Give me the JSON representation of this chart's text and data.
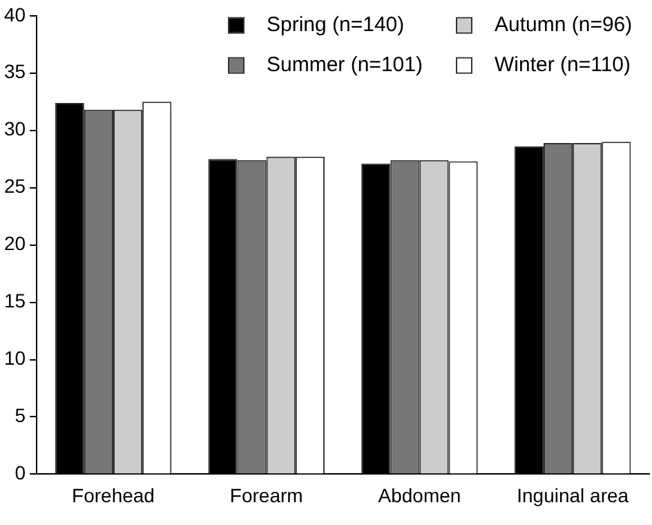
{
  "chart_data": {
    "type": "bar",
    "categories": [
      "Forehead",
      "Forearm",
      "Abdomen",
      "Inguinal area"
    ],
    "series": [
      {
        "name": "Spring (n=140)",
        "color": "#000000",
        "values": [
          32.4,
          27.5,
          27.1,
          28.6
        ]
      },
      {
        "name": "Summer (n=101)",
        "color": "#777777",
        "values": [
          31.8,
          27.4,
          27.4,
          28.9
        ]
      },
      {
        "name": "Autumn (n=96)",
        "color": "#cccccc",
        "values": [
          31.8,
          27.7,
          27.4,
          28.9
        ]
      },
      {
        "name": "Winter (n=110)",
        "color": "#ffffff",
        "values": [
          32.5,
          27.7,
          27.3,
          29.0
        ]
      }
    ],
    "ylim": [
      0,
      40
    ],
    "yticks": [
      0,
      5,
      10,
      15,
      20,
      25,
      30,
      35,
      40
    ],
    "grid": false,
    "legend": "top right"
  }
}
